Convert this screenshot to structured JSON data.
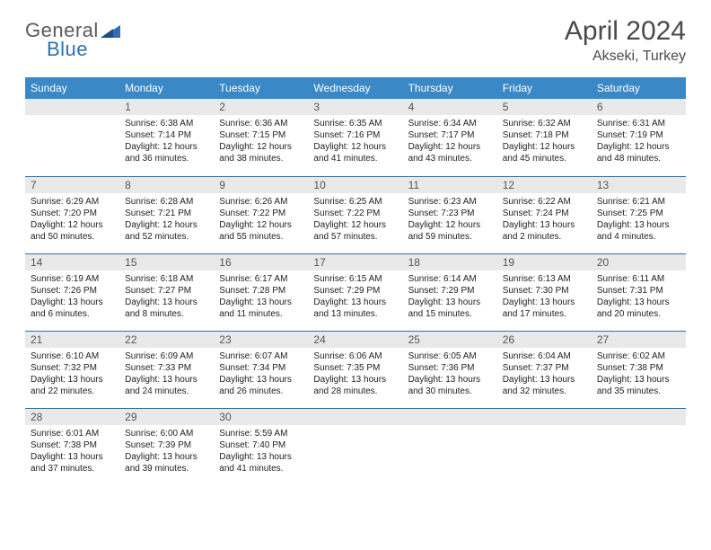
{
  "logo": {
    "text1": "General",
    "text2": "Blue"
  },
  "title": "April 2024",
  "location": "Akseki, Turkey",
  "weekdays": [
    "Sunday",
    "Monday",
    "Tuesday",
    "Wednesday",
    "Thursday",
    "Friday",
    "Saturday"
  ],
  "colors": {
    "header_bg": "#3b88c6",
    "header_text": "#ffffff",
    "daynum_bg": "#e9e9e9",
    "daynum_text": "#555555",
    "cell_text": "#222222",
    "divider": "#3b6ea0",
    "logo_gray": "#5a5a5a",
    "logo_blue": "#2f6fb3",
    "title_color": "#4a4a4a"
  },
  "typography": {
    "title_fontsize": 30,
    "location_fontsize": 16,
    "weekday_fontsize": 12,
    "daynum_fontsize": 12,
    "cell_fontsize": 10
  },
  "weeks": [
    [
      {
        "n": "",
        "lines": []
      },
      {
        "n": "1",
        "lines": [
          "Sunrise: 6:38 AM",
          "Sunset: 7:14 PM",
          "Daylight: 12 hours and 36 minutes."
        ]
      },
      {
        "n": "2",
        "lines": [
          "Sunrise: 6:36 AM",
          "Sunset: 7:15 PM",
          "Daylight: 12 hours and 38 minutes."
        ]
      },
      {
        "n": "3",
        "lines": [
          "Sunrise: 6:35 AM",
          "Sunset: 7:16 PM",
          "Daylight: 12 hours and 41 minutes."
        ]
      },
      {
        "n": "4",
        "lines": [
          "Sunrise: 6:34 AM",
          "Sunset: 7:17 PM",
          "Daylight: 12 hours and 43 minutes."
        ]
      },
      {
        "n": "5",
        "lines": [
          "Sunrise: 6:32 AM",
          "Sunset: 7:18 PM",
          "Daylight: 12 hours and 45 minutes."
        ]
      },
      {
        "n": "6",
        "lines": [
          "Sunrise: 6:31 AM",
          "Sunset: 7:19 PM",
          "Daylight: 12 hours and 48 minutes."
        ]
      }
    ],
    [
      {
        "n": "7",
        "lines": [
          "Sunrise: 6:29 AM",
          "Sunset: 7:20 PM",
          "Daylight: 12 hours and 50 minutes."
        ]
      },
      {
        "n": "8",
        "lines": [
          "Sunrise: 6:28 AM",
          "Sunset: 7:21 PM",
          "Daylight: 12 hours and 52 minutes."
        ]
      },
      {
        "n": "9",
        "lines": [
          "Sunrise: 6:26 AM",
          "Sunset: 7:22 PM",
          "Daylight: 12 hours and 55 minutes."
        ]
      },
      {
        "n": "10",
        "lines": [
          "Sunrise: 6:25 AM",
          "Sunset: 7:22 PM",
          "Daylight: 12 hours and 57 minutes."
        ]
      },
      {
        "n": "11",
        "lines": [
          "Sunrise: 6:23 AM",
          "Sunset: 7:23 PM",
          "Daylight: 12 hours and 59 minutes."
        ]
      },
      {
        "n": "12",
        "lines": [
          "Sunrise: 6:22 AM",
          "Sunset: 7:24 PM",
          "Daylight: 13 hours and 2 minutes."
        ]
      },
      {
        "n": "13",
        "lines": [
          "Sunrise: 6:21 AM",
          "Sunset: 7:25 PM",
          "Daylight: 13 hours and 4 minutes."
        ]
      }
    ],
    [
      {
        "n": "14",
        "lines": [
          "Sunrise: 6:19 AM",
          "Sunset: 7:26 PM",
          "Daylight: 13 hours and 6 minutes."
        ]
      },
      {
        "n": "15",
        "lines": [
          "Sunrise: 6:18 AM",
          "Sunset: 7:27 PM",
          "Daylight: 13 hours and 8 minutes."
        ]
      },
      {
        "n": "16",
        "lines": [
          "Sunrise: 6:17 AM",
          "Sunset: 7:28 PM",
          "Daylight: 13 hours and 11 minutes."
        ]
      },
      {
        "n": "17",
        "lines": [
          "Sunrise: 6:15 AM",
          "Sunset: 7:29 PM",
          "Daylight: 13 hours and 13 minutes."
        ]
      },
      {
        "n": "18",
        "lines": [
          "Sunrise: 6:14 AM",
          "Sunset: 7:29 PM",
          "Daylight: 13 hours and 15 minutes."
        ]
      },
      {
        "n": "19",
        "lines": [
          "Sunrise: 6:13 AM",
          "Sunset: 7:30 PM",
          "Daylight: 13 hours and 17 minutes."
        ]
      },
      {
        "n": "20",
        "lines": [
          "Sunrise: 6:11 AM",
          "Sunset: 7:31 PM",
          "Daylight: 13 hours and 20 minutes."
        ]
      }
    ],
    [
      {
        "n": "21",
        "lines": [
          "Sunrise: 6:10 AM",
          "Sunset: 7:32 PM",
          "Daylight: 13 hours and 22 minutes."
        ]
      },
      {
        "n": "22",
        "lines": [
          "Sunrise: 6:09 AM",
          "Sunset: 7:33 PM",
          "Daylight: 13 hours and 24 minutes."
        ]
      },
      {
        "n": "23",
        "lines": [
          "Sunrise: 6:07 AM",
          "Sunset: 7:34 PM",
          "Daylight: 13 hours and 26 minutes."
        ]
      },
      {
        "n": "24",
        "lines": [
          "Sunrise: 6:06 AM",
          "Sunset: 7:35 PM",
          "Daylight: 13 hours and 28 minutes."
        ]
      },
      {
        "n": "25",
        "lines": [
          "Sunrise: 6:05 AM",
          "Sunset: 7:36 PM",
          "Daylight: 13 hours and 30 minutes."
        ]
      },
      {
        "n": "26",
        "lines": [
          "Sunrise: 6:04 AM",
          "Sunset: 7:37 PM",
          "Daylight: 13 hours and 32 minutes."
        ]
      },
      {
        "n": "27",
        "lines": [
          "Sunrise: 6:02 AM",
          "Sunset: 7:38 PM",
          "Daylight: 13 hours and 35 minutes."
        ]
      }
    ],
    [
      {
        "n": "28",
        "lines": [
          "Sunrise: 6:01 AM",
          "Sunset: 7:38 PM",
          "Daylight: 13 hours and 37 minutes."
        ]
      },
      {
        "n": "29",
        "lines": [
          "Sunrise: 6:00 AM",
          "Sunset: 7:39 PM",
          "Daylight: 13 hours and 39 minutes."
        ]
      },
      {
        "n": "30",
        "lines": [
          "Sunrise: 5:59 AM",
          "Sunset: 7:40 PM",
          "Daylight: 13 hours and 41 minutes."
        ]
      },
      {
        "n": "",
        "lines": []
      },
      {
        "n": "",
        "lines": []
      },
      {
        "n": "",
        "lines": []
      },
      {
        "n": "",
        "lines": []
      }
    ]
  ]
}
